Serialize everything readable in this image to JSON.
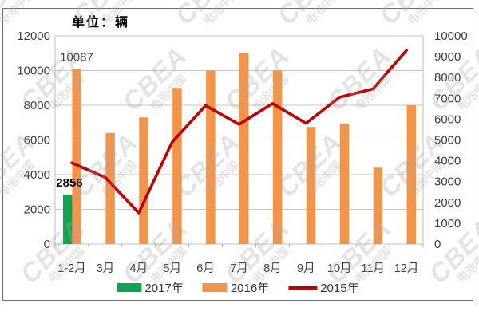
{
  "figure": {
    "title": "单位：辆",
    "watermark": {
      "line1": "CBEA",
      "line2": "电池中国"
    }
  },
  "chart_data": {
    "type": "bar",
    "subtype": "bar+line combo, dual axis",
    "title": "单位：辆",
    "categories": [
      "1-2月",
      "3月",
      "4月",
      "5月",
      "6月",
      "7月",
      "8月",
      "9月",
      "10月",
      "11月",
      "12月"
    ],
    "series": [
      {
        "name": "2017年",
        "type": "bar",
        "axis": "left",
        "color": "#13a452",
        "values": [
          2856,
          null,
          null,
          null,
          null,
          null,
          null,
          null,
          null,
          null,
          null
        ]
      },
      {
        "name": "2016年",
        "type": "bar",
        "axis": "left",
        "color": "#f2954b",
        "values": [
          10087,
          6400,
          7300,
          9000,
          10000,
          11000,
          10000,
          6750,
          6950,
          4400,
          8000
        ]
      },
      {
        "name": "2015年",
        "type": "line",
        "axis": "right",
        "color": "#c00000",
        "values": [
          3900,
          3200,
          1500,
          4900,
          6650,
          5750,
          6750,
          5800,
          7050,
          7450,
          9300
        ]
      }
    ],
    "left_axis": {
      "min": 0,
      "max": 12000,
      "step": 2000,
      "ticks": [
        "0",
        "2000",
        "4000",
        "6000",
        "8000",
        "10000",
        "12000"
      ]
    },
    "right_axis": {
      "min": 0,
      "max": 10000,
      "step": 1000,
      "ticks": [
        "0",
        "1000",
        "2000",
        "3000",
        "4000",
        "5000",
        "6000",
        "7000",
        "8000",
        "9000",
        "10000"
      ]
    },
    "data_labels": [
      {
        "series_index": 1,
        "category_index": 0,
        "text": "10087",
        "bold": false,
        "color": "#3f3f3f"
      },
      {
        "series_index": 0,
        "category_index": 0,
        "text": "2856",
        "bold": true,
        "color": "#000000"
      }
    ],
    "grid": true,
    "legend_position": "bottom"
  },
  "legend": {
    "items": [
      {
        "label": "2017年",
        "color": "#13a452",
        "shape": "rect"
      },
      {
        "label": "2016年",
        "color": "#f2954b",
        "shape": "rect"
      },
      {
        "label": "2015年",
        "color": "#c00000",
        "shape": "line"
      }
    ]
  },
  "colors": {
    "grid": "#c6c6c6",
    "plot_border": "#bfbfbf",
    "axis_text": "#3f3f3f",
    "tick": "#ababab"
  }
}
